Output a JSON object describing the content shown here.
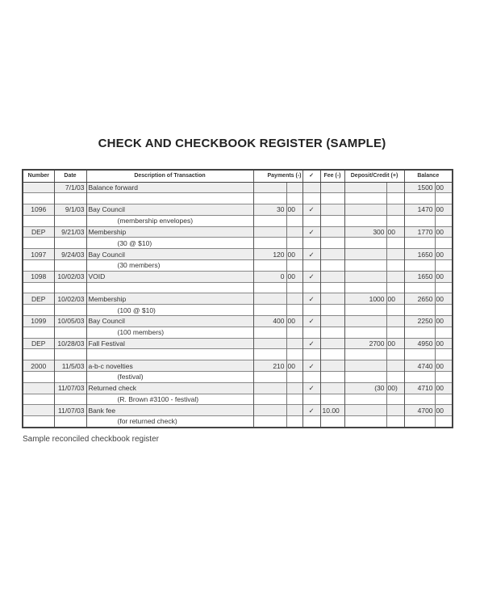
{
  "title": "CHECK AND CHECKBOOK REGISTER (SAMPLE)",
  "headers": {
    "number": "Number",
    "date": "Date",
    "description": "Description of Transaction",
    "payments": "Payments (-)",
    "check": "✓",
    "fee": "Fee (-)",
    "deposit": "Deposit/Credit (+)",
    "balance": "Balance"
  },
  "rows": [
    {
      "number": "",
      "date": "7/1/03",
      "description": "Balance forward",
      "payment": [
        "",
        ""
      ],
      "check": "",
      "fee": "",
      "deposit": [
        "",
        ""
      ],
      "balance": [
        "1500",
        "00"
      ]
    },
    {
      "number": "",
      "date": "",
      "description": "",
      "payment": [
        "",
        ""
      ],
      "check": "",
      "fee": "",
      "deposit": [
        "",
        ""
      ],
      "balance": [
        "",
        ""
      ]
    },
    {
      "number": "1096",
      "date": "9/1/03",
      "description": "Bay Council",
      "payment": [
        "30",
        "00"
      ],
      "check": "✓",
      "fee": "",
      "deposit": [
        "",
        ""
      ],
      "balance": [
        "1470",
        "00"
      ]
    },
    {
      "number": "",
      "date": "",
      "description": "(membership envelopes)",
      "indent": true,
      "payment": [
        "",
        ""
      ],
      "check": "",
      "fee": "",
      "deposit": [
        "",
        ""
      ],
      "balance": [
        "",
        ""
      ]
    },
    {
      "number": "DEP",
      "date": "9/21/03",
      "description": "Membership",
      "payment": [
        "",
        ""
      ],
      "check": "✓",
      "fee": "",
      "deposit": [
        "300",
        "00"
      ],
      "balance": [
        "1770",
        "00"
      ]
    },
    {
      "number": "",
      "date": "",
      "description": "(30 @ $10)",
      "indent": true,
      "payment": [
        "",
        ""
      ],
      "check": "",
      "fee": "",
      "deposit": [
        "",
        ""
      ],
      "balance": [
        "",
        ""
      ]
    },
    {
      "number": "1097",
      "date": "9/24/03",
      "description": "Bay Council",
      "payment": [
        "120",
        "00"
      ],
      "check": "✓",
      "fee": "",
      "deposit": [
        "",
        ""
      ],
      "balance": [
        "1650",
        "00"
      ]
    },
    {
      "number": "",
      "date": "",
      "description": "(30 members)",
      "indent": true,
      "payment": [
        "",
        ""
      ],
      "check": "",
      "fee": "",
      "deposit": [
        "",
        ""
      ],
      "balance": [
        "",
        ""
      ]
    },
    {
      "number": "1098",
      "date": "10/02/03",
      "description": "VOID",
      "payment": [
        "0",
        "00"
      ],
      "check": "✓",
      "fee": "",
      "deposit": [
        "",
        ""
      ],
      "balance": [
        "1650",
        "00"
      ]
    },
    {
      "number": "",
      "date": "",
      "description": "",
      "payment": [
        "",
        ""
      ],
      "check": "",
      "fee": "",
      "deposit": [
        "",
        ""
      ],
      "balance": [
        "",
        ""
      ]
    },
    {
      "number": "DEP",
      "date": "10/02/03",
      "description": "Membership",
      "payment": [
        "",
        ""
      ],
      "check": "✓",
      "fee": "",
      "deposit": [
        "1000",
        "00"
      ],
      "balance": [
        "2650",
        "00"
      ]
    },
    {
      "number": "",
      "date": "",
      "description": "(100 @ $10)",
      "indent": true,
      "payment": [
        "",
        ""
      ],
      "check": "",
      "fee": "",
      "deposit": [
        "",
        ""
      ],
      "balance": [
        "",
        ""
      ]
    },
    {
      "number": "1099",
      "date": "10/05/03",
      "description": "Bay Council",
      "payment": [
        "400",
        "00"
      ],
      "check": "✓",
      "fee": "",
      "deposit": [
        "",
        ""
      ],
      "balance": [
        "2250",
        "00"
      ]
    },
    {
      "number": "",
      "date": "",
      "description": "(100 members)",
      "indent": true,
      "payment": [
        "",
        ""
      ],
      "check": "",
      "fee": "",
      "deposit": [
        "",
        ""
      ],
      "balance": [
        "",
        ""
      ]
    },
    {
      "number": "DEP",
      "date": "10/28/03",
      "description": "Fall Festival",
      "payment": [
        "",
        ""
      ],
      "check": "✓",
      "fee": "",
      "deposit": [
        "2700",
        "00"
      ],
      "balance": [
        "4950",
        "00"
      ]
    },
    {
      "number": "",
      "date": "",
      "description": "",
      "payment": [
        "",
        ""
      ],
      "check": "",
      "fee": "",
      "deposit": [
        "",
        ""
      ],
      "balance": [
        "",
        ""
      ]
    },
    {
      "number": "2000",
      "date": "11/5/03",
      "description": "a-b-c novelties",
      "payment": [
        "210",
        "00"
      ],
      "check": "✓",
      "fee": "",
      "deposit": [
        "",
        ""
      ],
      "balance": [
        "4740",
        "00"
      ]
    },
    {
      "number": "",
      "date": "",
      "description": "(festival)",
      "indent": true,
      "payment": [
        "",
        ""
      ],
      "check": "",
      "fee": "",
      "deposit": [
        "",
        ""
      ],
      "balance": [
        "",
        ""
      ]
    },
    {
      "number": "",
      "date": "11/07/03",
      "description": "Returned check",
      "payment": [
        "",
        ""
      ],
      "check": "✓",
      "fee": "",
      "deposit": [
        "(30",
        "00)"
      ],
      "balance": [
        "4710",
        "00"
      ]
    },
    {
      "number": "",
      "date": "",
      "description": "(R. Brown #3100 - festival)",
      "indent": true,
      "payment": [
        "",
        ""
      ],
      "check": "",
      "fee": "",
      "deposit": [
        "",
        ""
      ],
      "balance": [
        "",
        ""
      ]
    },
    {
      "number": "",
      "date": "11/07/03",
      "description": "Bank fee",
      "payment": [
        "",
        ""
      ],
      "check": "✓",
      "fee": "10.00",
      "deposit": [
        "",
        ""
      ],
      "balance": [
        "4700",
        "00"
      ]
    },
    {
      "number": "",
      "date": "",
      "description": "(for returned check)",
      "indent": true,
      "payment": [
        "",
        ""
      ],
      "check": "",
      "fee": "",
      "deposit": [
        "",
        ""
      ],
      "balance": [
        "",
        ""
      ]
    }
  ],
  "caption": "Sample reconciled checkbook register"
}
